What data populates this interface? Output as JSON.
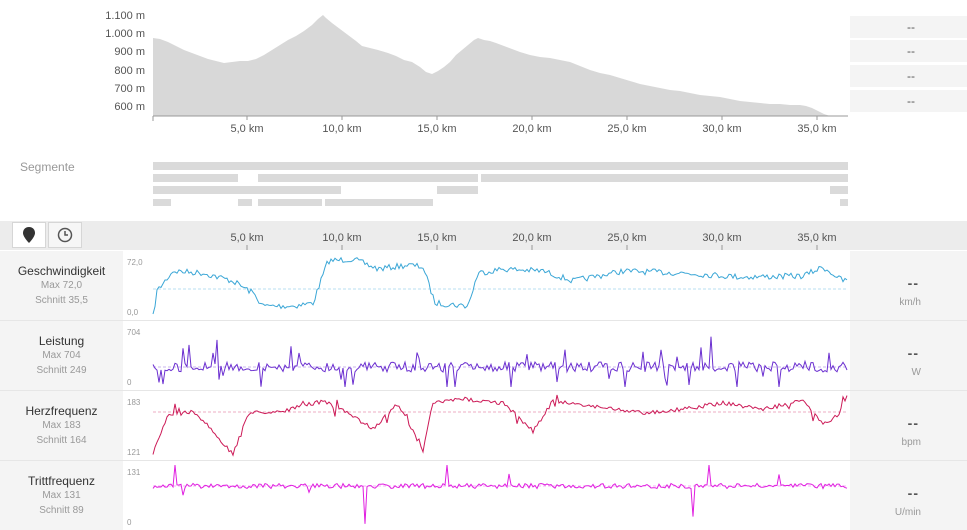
{
  "elevation": {
    "y_labels": [
      "1.100 m",
      "1.000 m",
      "900 m",
      "800 m",
      "700 m",
      "600 m"
    ],
    "x_labels": [
      "5,0 km",
      "10,0 km",
      "15,0 km",
      "20,0 km",
      "25,0 km",
      "30,0 km",
      "35,0 km"
    ],
    "stats": [
      "--",
      "--",
      "--",
      "--"
    ]
  },
  "segments": {
    "label": "Segmente"
  },
  "timeline": {
    "x_labels": [
      "5,0 km",
      "10,0 km",
      "15,0 km",
      "20,0 km",
      "25,0 km",
      "30,0 km",
      "35,0 km"
    ]
  },
  "metrics": [
    {
      "name": "Geschwindigkeit",
      "max": "Max 72,0",
      "avg": "Schnitt 35,5",
      "top": "72,0",
      "bottom": "0,0",
      "value": "--",
      "unit": "km/h",
      "color": "#3aa6d6"
    },
    {
      "name": "Leistung",
      "max": "Max 704",
      "avg": "Schnitt 249",
      "top": "704",
      "bottom": "0",
      "value": "--",
      "unit": "W",
      "color": "#6b2fd0"
    },
    {
      "name": "Herzfrequenz",
      "max": "Max 183",
      "avg": "Schnitt 164",
      "top": "183",
      "bottom": "121",
      "value": "--",
      "unit": "bpm",
      "color": "#cc1a57"
    },
    {
      "name": "Trittfrequenz",
      "max": "Max 131",
      "avg": "Schnitt 89",
      "top": "131",
      "bottom": "0",
      "value": "--",
      "unit": "U/min",
      "color": "#e01ee0"
    }
  ],
  "toolbar": {
    "location_icon": "map-pin-icon",
    "time_icon": "clock-icon"
  }
}
